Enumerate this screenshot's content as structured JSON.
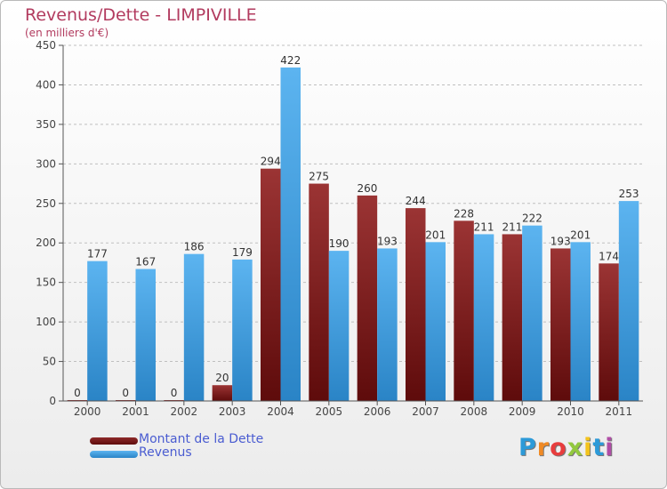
{
  "title": "Revenus/Dette - LIMPIVILLE",
  "subtitle": "(en milliers d'€)",
  "logo": {
    "letters": [
      "P",
      "r",
      "o",
      "x",
      "i",
      "t",
      "i"
    ],
    "colors": [
      "#2c9ad8",
      "#f08a24",
      "#e83d3d",
      "#92c83e",
      "#f3c31c",
      "#2c9ad8",
      "#b04da6"
    ]
  },
  "chart_data": {
    "type": "bar",
    "categories": [
      "2000",
      "2001",
      "2002",
      "2003",
      "2004",
      "2005",
      "2006",
      "2007",
      "2008",
      "2009",
      "2010",
      "2011"
    ],
    "series": [
      {
        "name": "Montant de la Dette",
        "color": "#7a1e1e",
        "values": [
          0,
          0,
          0,
          20,
          294,
          275,
          260,
          244,
          228,
          211,
          193,
          174
        ]
      },
      {
        "name": "Revenus",
        "color": "#4aa3e3",
        "values": [
          177,
          167,
          186,
          179,
          422,
          190,
          193,
          201,
          211,
          222,
          201,
          253
        ]
      }
    ],
    "ylim": [
      0,
      450
    ],
    "yticks": [
      "0",
      "50",
      "100",
      "150",
      "200",
      "250",
      "300",
      "350",
      "400",
      "450"
    ],
    "grid": true,
    "legend": "bottom-left"
  }
}
